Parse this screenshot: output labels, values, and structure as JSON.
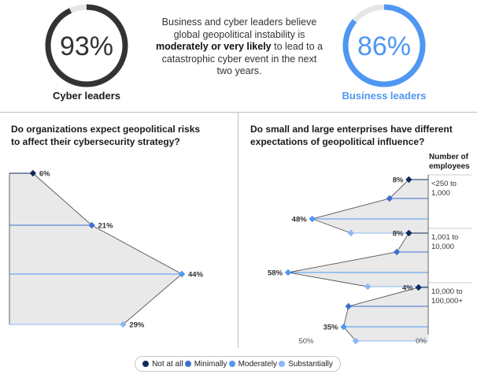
{
  "header": {
    "cyber": {
      "value": "93%",
      "fraction": 0.93,
      "label": "Cyber leaders",
      "color": "#333333"
    },
    "business": {
      "value": "86%",
      "fraction": 0.86,
      "label": "Business leaders",
      "color": "#4f97f2"
    },
    "text_part1": "Business and cyber leaders believe global geopolitical instability is ",
    "text_bold": "moderately or very likely",
    "text_part2": " to lead to a catastrophic cyber event in the next two years."
  },
  "left_panel": {
    "title_line1": "Do organizations expect geopolitical risks",
    "title_line2": "to affect their cybersecurity strategy?"
  },
  "right_panel": {
    "title_line1": "Do small and large enterprises have different",
    "title_line2": "expectations of geopolitical influence?",
    "column_header_line1": "Number of",
    "column_header_line2": "employees"
  },
  "legend": [
    {
      "label": "Not at all",
      "color": "#0f2a5c"
    },
    {
      "label": "Minimally",
      "color": "#3f6fd1"
    },
    {
      "label": "Moderately",
      "color": "#4f97f2"
    },
    {
      "label": "Substantially",
      "color": "#8ab8f7"
    }
  ],
  "chart_data": [
    {
      "type": "area",
      "categories": [
        "Not at all",
        "Minimally",
        "Moderately",
        "Substantially"
      ],
      "values": [
        6,
        21,
        44,
        29
      ],
      "labels": [
        "6%",
        "21%",
        "44%",
        "29%"
      ],
      "xlim": [
        0,
        50
      ],
      "colors": [
        "#0f2a5c",
        "#3f6fd1",
        "#4f97f2",
        "#8ab8f7"
      ]
    },
    {
      "type": "area",
      "categories": [
        "Not at all",
        "Minimally",
        "Moderately",
        "Substantially"
      ],
      "xlim": [
        50,
        0
      ],
      "axis_labels": [
        "50%",
        "0%"
      ],
      "groups": [
        {
          "label_line1": "<250 to",
          "label_line2": "1,000",
          "values": [
            8,
            16,
            48,
            32
          ],
          "labels": [
            "8%",
            "",
            "48%",
            ""
          ]
        },
        {
          "label_line1": "1,001 to",
          "label_line2": "10,000",
          "values": [
            8,
            13,
            58,
            25
          ],
          "labels": [
            "8%",
            "",
            "58%",
            ""
          ]
        },
        {
          "label_line1": "10,000 to",
          "label_line2": "100,000+",
          "values": [
            4,
            33,
            35,
            30
          ],
          "labels": [
            "4%",
            "",
            "35%",
            ""
          ]
        }
      ]
    }
  ]
}
